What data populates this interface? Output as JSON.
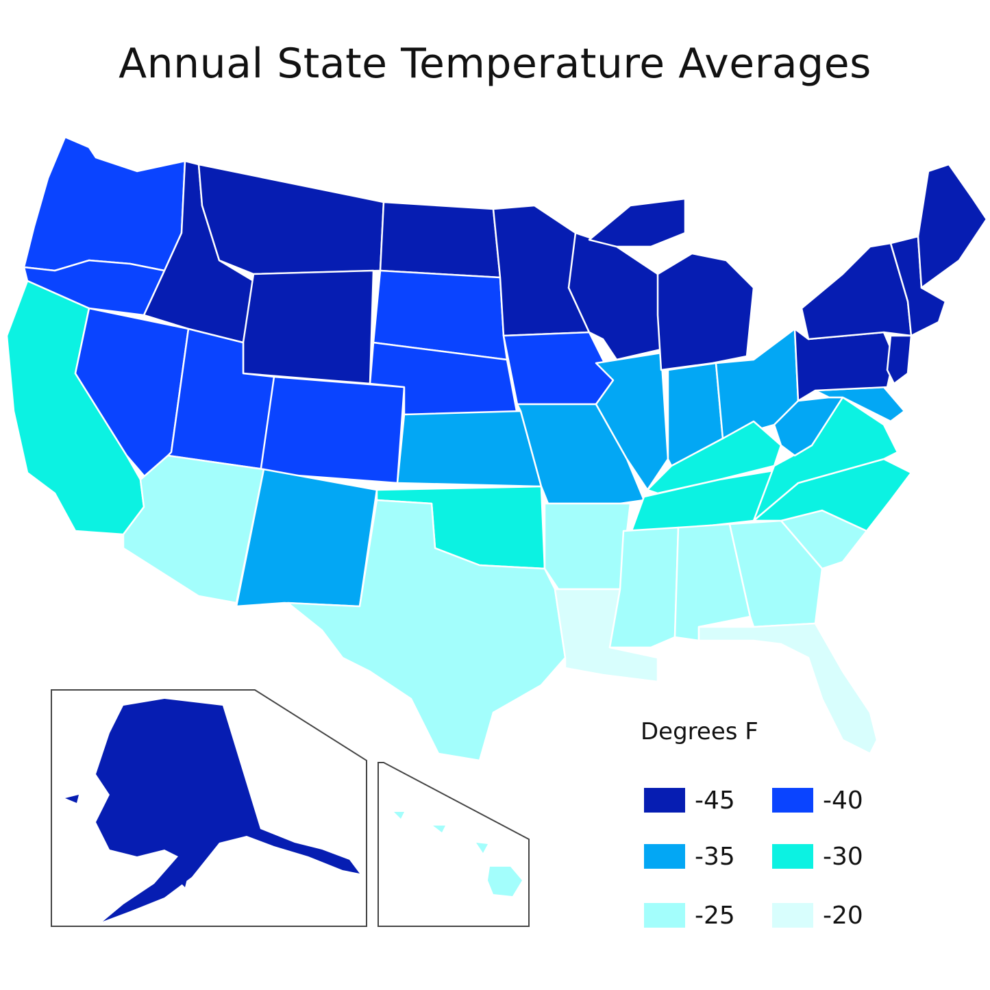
{
  "title": "Annual State Temperature Averages",
  "legend": {
    "title": "Degrees F",
    "items": [
      {
        "label": "-45",
        "color": "#061db2"
      },
      {
        "label": "-40",
        "color": "#0a44ff"
      },
      {
        "label": "-35",
        "color": "#03a7f4"
      },
      {
        "label": "-30",
        "color": "#0cf2e2"
      },
      {
        "label": "-25",
        "color": "#a3fefc"
      },
      {
        "label": "-20",
        "color": "#d8fefd"
      }
    ]
  },
  "regions": {
    "WA": "-40",
    "OR": "-40",
    "CA": "-30",
    "NV": "-40",
    "ID": "-45",
    "MT": "-45",
    "WY": "-45",
    "UT": "-40",
    "CO": "-40",
    "AZ": "-25",
    "NM": "-35",
    "ND": "-45",
    "SD": "-40",
    "NE": "-40",
    "KS": "-35",
    "OK": "-30",
    "TX": "-25",
    "MN": "-45",
    "IA": "-40",
    "MO": "-35",
    "AR": "-25",
    "LA": "-20",
    "WI": "-45",
    "IL": "-35",
    "MI": "-45",
    "IN": "-35",
    "OH": "-35",
    "KY": "-30",
    "TN": "-30",
    "MS": "-25",
    "AL": "-25",
    "GA": "-25",
    "FL": "-20",
    "SC": "-25",
    "NC": "-30",
    "VA": "-30",
    "WV": "-35",
    "PA": "-45",
    "NY": "-45",
    "NJ": "-45",
    "MD": "-35",
    "NE_REGION": "-45",
    "ME": "-45",
    "AK": "-45",
    "HI": "-25"
  }
}
